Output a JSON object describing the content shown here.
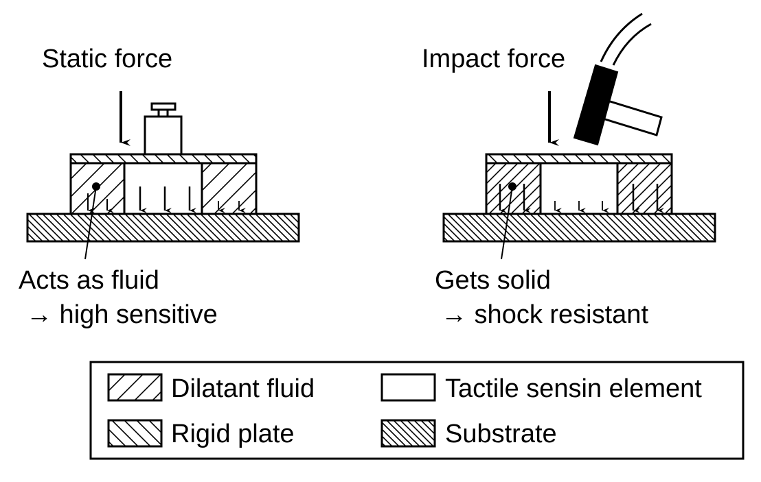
{
  "colors": {
    "ink": "#000000",
    "paper": "#ffffff"
  },
  "left_panel": {
    "force_label": "Static force",
    "caption_line1": "Acts as fluid",
    "caption_line2": "→ high sensitive",
    "weight_icon": "weight-icon"
  },
  "right_panel": {
    "force_label": "Impact force",
    "caption_line1": "Gets solid",
    "caption_line2": "→ shock resistant",
    "hammer_icon": "hammer-icon"
  },
  "legend": {
    "items": [
      {
        "label": "Dilatant fluid",
        "pattern": "diagonal-up-sparse"
      },
      {
        "label": "Tactile sensin element",
        "pattern": "blank"
      },
      {
        "label": "Rigid plate",
        "pattern": "diagonal-down-sparse"
      },
      {
        "label": "Substrate",
        "pattern": "diagonal-down-dense"
      }
    ]
  }
}
